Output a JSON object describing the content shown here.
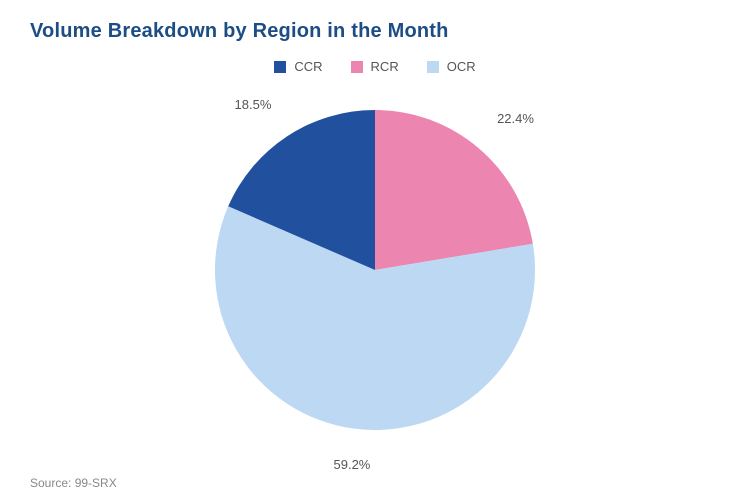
{
  "title": {
    "text": "Volume Breakdown by Region in the Month",
    "color": "#1c4d85",
    "fontsize": 20,
    "fontweight": 700
  },
  "chart": {
    "type": "pie",
    "radius": 160,
    "background_color": "#ffffff",
    "start_angle_deg": -90,
    "series": [
      {
        "key": "CCR",
        "value": 18.5,
        "color": "#20509e",
        "label": "18.5%"
      },
      {
        "key": "RCR",
        "value": 22.4,
        "color": "#ed85b1",
        "label": "22.4%"
      },
      {
        "key": "OCR",
        "value": 59.2,
        "color": "#bcd8f2",
        "label": "59.2%"
      }
    ],
    "legend": {
      "position": "top-center",
      "fontsize": 13,
      "text_color": "#555555",
      "swatch_size": 12
    },
    "slice_label": {
      "fontsize": 13,
      "color": "#555555",
      "offset_factor": 1.18
    }
  },
  "source": {
    "text": "Source: 99-SRX",
    "color": "#888888",
    "fontsize": 12
  }
}
